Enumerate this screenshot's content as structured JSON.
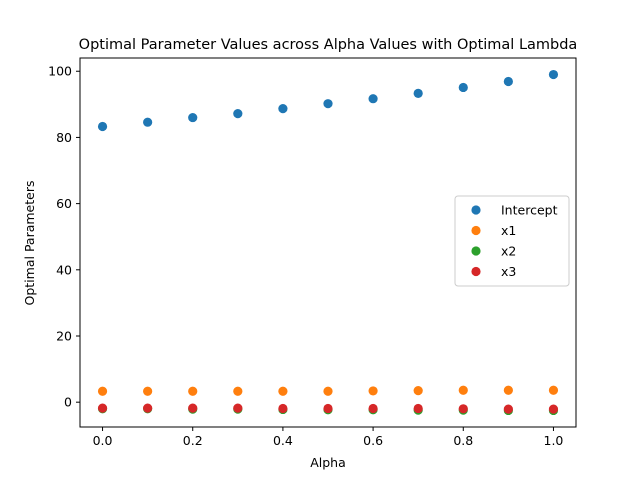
{
  "chart_data": {
    "type": "scatter",
    "title": "Optimal Parameter Values across Alpha Values with Optimal Lambda",
    "xlabel": "Alpha",
    "ylabel": "Optimal Parameters",
    "x": [
      0.0,
      0.1,
      0.2,
      0.3,
      0.4,
      0.5,
      0.6,
      0.7,
      0.8,
      0.9,
      1.0
    ],
    "xlim": [
      -0.05,
      1.05
    ],
    "ylim": [
      -7.5,
      104
    ],
    "xticks": [
      0.0,
      0.2,
      0.4,
      0.6,
      0.8,
      1.0
    ],
    "xtick_labels": [
      "0.0",
      "0.2",
      "0.4",
      "0.6",
      "0.8",
      "1.0"
    ],
    "yticks": [
      0,
      20,
      40,
      60,
      80,
      100
    ],
    "ytick_labels": [
      "0",
      "20",
      "40",
      "60",
      "80",
      "100"
    ],
    "grid": false,
    "legend_position": "center-right",
    "series": [
      {
        "name": "Intercept",
        "color": "#1f77b4",
        "values": [
          83.3,
          84.6,
          86.0,
          87.2,
          88.7,
          90.2,
          91.7,
          93.3,
          95.1,
          96.9,
          99.0
        ]
      },
      {
        "name": "x1",
        "color": "#ff7f0e",
        "values": [
          3.3,
          3.3,
          3.3,
          3.3,
          3.3,
          3.3,
          3.4,
          3.5,
          3.6,
          3.6,
          3.6
        ]
      },
      {
        "name": "x2",
        "color": "#2ca02c",
        "values": [
          -2.0,
          -2.0,
          -2.1,
          -2.1,
          -2.2,
          -2.3,
          -2.3,
          -2.4,
          -2.4,
          -2.5,
          -2.5
        ]
      },
      {
        "name": "x3",
        "color": "#d62728",
        "values": [
          -1.8,
          -1.8,
          -1.8,
          -1.8,
          -1.9,
          -1.9,
          -1.9,
          -1.9,
          -2.0,
          -2.1,
          -2.1
        ]
      }
    ]
  }
}
